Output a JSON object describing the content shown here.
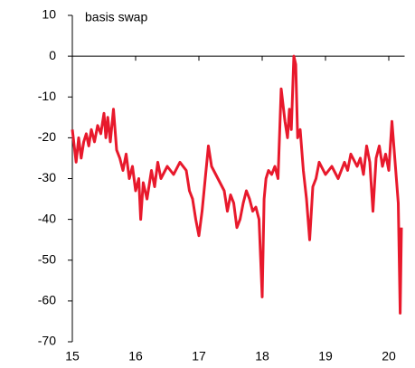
{
  "chart_data": {
    "type": "line",
    "annotation": "basis swap",
    "x": [
      15.0,
      15.03,
      15.06,
      15.1,
      15.14,
      15.18,
      15.22,
      15.26,
      15.3,
      15.35,
      15.4,
      15.45,
      15.5,
      15.53,
      15.56,
      15.6,
      15.65,
      15.7,
      15.75,
      15.8,
      15.85,
      15.9,
      15.95,
      16.0,
      16.05,
      16.08,
      16.12,
      16.18,
      16.25,
      16.3,
      16.35,
      16.4,
      16.5,
      16.6,
      16.7,
      16.8,
      16.85,
      16.9,
      16.95,
      17.0,
      17.05,
      17.1,
      17.15,
      17.2,
      17.3,
      17.4,
      17.45,
      17.5,
      17.55,
      17.6,
      17.65,
      17.7,
      17.75,
      17.8,
      17.85,
      17.9,
      17.95,
      18.0,
      18.03,
      18.06,
      18.1,
      18.15,
      18.2,
      18.25,
      18.3,
      18.33,
      18.36,
      18.4,
      18.43,
      18.46,
      18.5,
      18.53,
      18.56,
      18.6,
      18.65,
      18.7,
      18.75,
      18.8,
      18.85,
      18.9,
      19.0,
      19.1,
      19.2,
      19.3,
      19.35,
      19.4,
      19.5,
      19.55,
      19.6,
      19.65,
      19.7,
      19.75,
      19.8,
      19.85,
      19.9,
      19.95,
      20.0,
      20.05,
      20.08,
      20.12,
      20.15,
      20.18,
      20.2
    ],
    "series": [
      {
        "name": "basis swap",
        "color": "#e8192c",
        "values": [
          -18,
          -22,
          -26,
          -20,
          -25,
          -21,
          -19,
          -22,
          -18,
          -21,
          -17,
          -19,
          -14,
          -20,
          -15,
          -21,
          -13,
          -23,
          -25,
          -28,
          -24,
          -30,
          -27,
          -33,
          -30,
          -40,
          -31,
          -35,
          -28,
          -32,
          -26,
          -30,
          -27,
          -29,
          -26,
          -28,
          -33,
          -35,
          -40,
          -44,
          -38,
          -30,
          -22,
          -27,
          -30,
          -33,
          -38,
          -34,
          -36,
          -42,
          -40,
          -36,
          -33,
          -35,
          -38,
          -37,
          -40,
          -59,
          -35,
          -30,
          -28,
          -29,
          -27,
          -30,
          -8,
          -12,
          -16,
          -20,
          -13,
          -18,
          0,
          -2,
          -20,
          -18,
          -28,
          -35,
          -45,
          -32,
          -30,
          -26,
          -29,
          -27,
          -30,
          -26,
          -28,
          -24,
          -27,
          -25,
          -29,
          -22,
          -26,
          -38,
          -25,
          -22,
          -27,
          -24,
          -28,
          -16,
          -22,
          -30,
          -36,
          -63,
          -42
        ]
      }
    ],
    "xlim": [
      15,
      20.25
    ],
    "xticks": [
      15,
      16,
      17,
      18,
      19,
      20
    ],
    "ylim": [
      -70,
      10
    ],
    "yticks": [
      -70,
      -60,
      -50,
      -40,
      -30,
      -20,
      -10,
      0,
      10
    ]
  }
}
